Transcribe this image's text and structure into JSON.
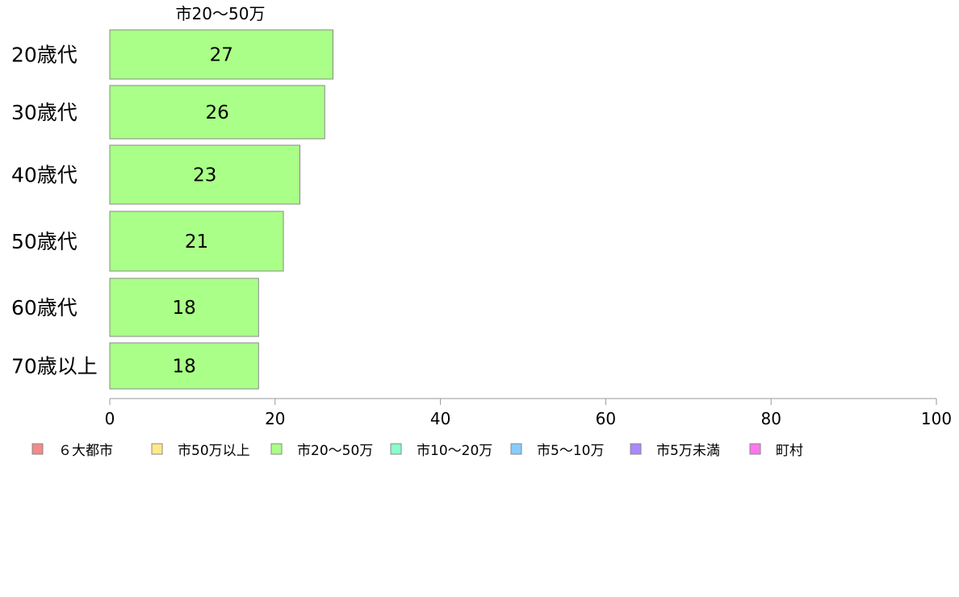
{
  "chart_data": {
    "type": "bar",
    "orientation": "horizontal",
    "title": "市20～50万",
    "categories": [
      "20歳代",
      "30歳代",
      "40歳代",
      "50歳代",
      "60歳代",
      "70歳以上"
    ],
    "series": [
      {
        "name": "市20～50万",
        "values": [
          27,
          26,
          23,
          21,
          18,
          18
        ],
        "value_labels": [
          "27",
          "26",
          "23",
          "21",
          "18",
          "18"
        ],
        "color": "#aaff88"
      }
    ],
    "xlim": [
      0,
      100
    ],
    "xticks": [
      0,
      20,
      40,
      60,
      80,
      100
    ],
    "xtick_labels": [
      "0",
      "20",
      "40",
      "60",
      "80",
      "100"
    ],
    "grid": false,
    "legend_position": "bottom",
    "legend": [
      {
        "label": "６大都市",
        "color": "#f28a8a"
      },
      {
        "label": "市50万以上",
        "color": "#ffe98a"
      },
      {
        "label": "市20～50万",
        "color": "#aaff88"
      },
      {
        "label": "市10～20万",
        "color": "#88ffcc"
      },
      {
        "label": "市5～10万",
        "color": "#88ccff"
      },
      {
        "label": "市5万未満",
        "color": "#aa88ff"
      },
      {
        "label": "町村",
        "color": "#ff77ee"
      }
    ],
    "colors": {
      "bar_stroke": "#888888",
      "axis": "#999999",
      "text": "#000000"
    }
  }
}
